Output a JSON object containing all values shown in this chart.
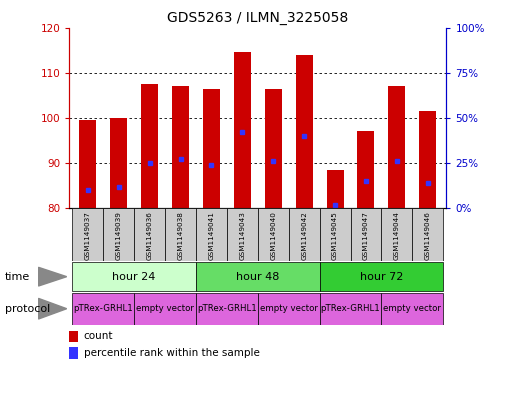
{
  "title": "GDS5263 / ILMN_3225058",
  "samples": [
    "GSM1149037",
    "GSM1149039",
    "GSM1149036",
    "GSM1149038",
    "GSM1149041",
    "GSM1149043",
    "GSM1149040",
    "GSM1149042",
    "GSM1149045",
    "GSM1149047",
    "GSM1149044",
    "GSM1149046"
  ],
  "counts": [
    99.5,
    100.0,
    107.5,
    107.0,
    106.5,
    114.5,
    106.5,
    114.0,
    88.5,
    97.0,
    107.0,
    101.5
  ],
  "percentile_ranks": [
    10,
    12,
    25,
    27,
    24,
    42,
    26,
    40,
    2,
    15,
    26,
    14
  ],
  "ylim_left": [
    80,
    120
  ],
  "ylim_right": [
    0,
    100
  ],
  "yticks_left": [
    80,
    90,
    100,
    110,
    120
  ],
  "yticks_right": [
    0,
    25,
    50,
    75,
    100
  ],
  "ytick_labels_right": [
    "0%",
    "25%",
    "50%",
    "75%",
    "100%"
  ],
  "bar_color": "#cc0000",
  "dot_color": "#3333ff",
  "bar_width": 0.55,
  "time_colors": [
    "#ccffcc",
    "#66dd66",
    "#33cc33"
  ],
  "time_groups": [
    {
      "label": "hour 24",
      "start": 0,
      "end": 3
    },
    {
      "label": "hour 48",
      "start": 4,
      "end": 7
    },
    {
      "label": "hour 72",
      "start": 8,
      "end": 11
    }
  ],
  "prot_color": "#dd66dd",
  "prot_groups": [
    {
      "label": "pTRex-GRHL1",
      "start": 0,
      "end": 1
    },
    {
      "label": "empty vector",
      "start": 2,
      "end": 3
    },
    {
      "label": "pTRex-GRHL1",
      "start": 4,
      "end": 5
    },
    {
      "label": "empty vector",
      "start": 6,
      "end": 7
    },
    {
      "label": "pTRex-GRHL1",
      "start": 8,
      "end": 9
    },
    {
      "label": "empty vector",
      "start": 10,
      "end": 11
    }
  ],
  "background_color": "#ffffff",
  "sample_bg_color": "#cccccc",
  "left_axis_color": "#cc0000",
  "right_axis_color": "#0000cc",
  "base_value": 80
}
